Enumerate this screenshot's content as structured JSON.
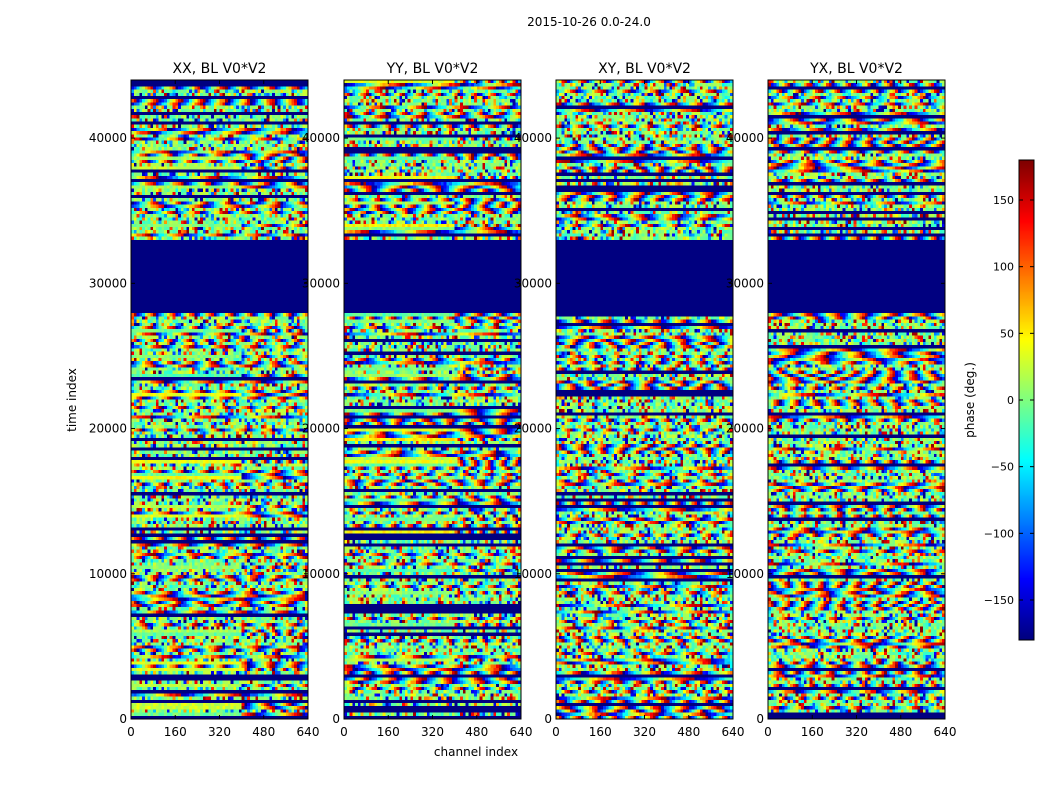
{
  "chart_data": {
    "type": "heatmap",
    "suptitle": "2015-10-26 0.0-24.0",
    "xlabel": "channel index",
    "ylabel": "time index",
    "xlim": [
      0,
      640
    ],
    "ylim": [
      0,
      44000
    ],
    "xticks": [
      0,
      160,
      320,
      480,
      640
    ],
    "yticks": [
      0,
      10000,
      20000,
      30000,
      40000
    ],
    "colorbar": {
      "label": "phase (deg.)",
      "range": [
        -180,
        180
      ],
      "ticks": [
        150,
        100,
        50,
        0,
        -50,
        -100,
        -150
      ],
      "tick_labels": [
        "150",
        "100",
        "50",
        "0",
        "−50",
        "−100",
        "−150"
      ],
      "colormap": "jet"
    },
    "panels": [
      {
        "title": "XX, BL V0*V2"
      },
      {
        "title": "YY, BL V0*V2"
      },
      {
        "title": "XY, BL V0*V2"
      },
      {
        "title": "YX, BL V0*V2"
      }
    ],
    "flagged_time_ranges": [
      [
        28000,
        33000
      ]
    ],
    "flagged_value_deg": -180
  }
}
